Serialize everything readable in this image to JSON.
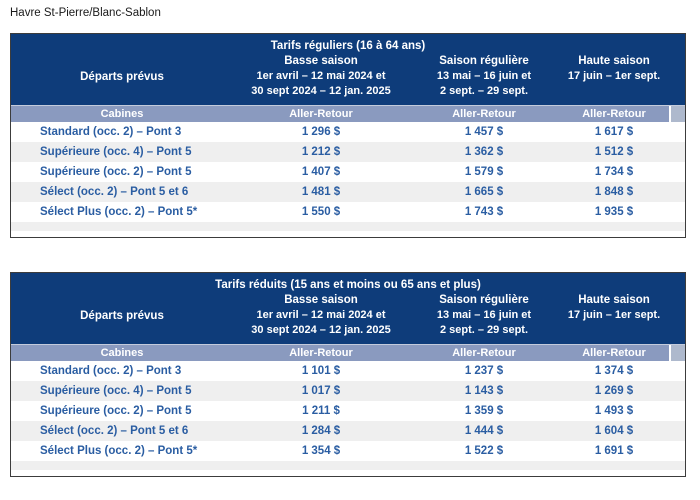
{
  "page_title": "Havre St-Pierre/Blanc-Sablon",
  "colors": {
    "header_navy": "#0e3c7a",
    "subheader_band": "#8a9abf",
    "subheader_endcap": "#aeb9cd",
    "row_alt_gray": "#efefef",
    "data_text_blue": "#2a5da2",
    "header_text": "#ffffff",
    "table_border": "#3c3c3c"
  },
  "tables": [
    {
      "title": "Tarifs réguliers (16 à 64 ans)",
      "departures_label": "Départs prévus",
      "cabins_label": "Cabines",
      "seasons": [
        {
          "name": "Basse saison",
          "dates": [
            "1er avril – 12 mai 2024 et",
            "30 sept 2024 – 12 jan. 2025"
          ],
          "fare_type": "Aller-Retour"
        },
        {
          "name": "Saison régulière",
          "dates": [
            "13 mai – 16 juin et",
            "2 sept. – 29 sept."
          ],
          "fare_type": "Aller-Retour"
        },
        {
          "name": "Haute saison",
          "dates": [
            "17 juin – 1er sept."
          ],
          "fare_type": "Aller-Retour"
        }
      ],
      "rows": [
        {
          "cabin": "Standard (occ. 2) – Pont 3",
          "prices": [
            "1 296 $",
            "1 457 $",
            "1 617 $"
          ]
        },
        {
          "cabin": "Supérieure (occ. 4) – Pont 5",
          "prices": [
            "1 212 $",
            "1 362 $",
            "1 512 $"
          ]
        },
        {
          "cabin": "Supérieure (occ. 2) – Pont 5",
          "prices": [
            "1 407 $",
            "1 579 $",
            "1 734 $"
          ]
        },
        {
          "cabin": "Sélect (occ. 2) – Pont 5 et 6",
          "prices": [
            "1 481 $",
            "1 665 $",
            "1 848 $"
          ]
        },
        {
          "cabin": "Sélect Plus (occ. 2) – Pont 5*",
          "prices": [
            "1 550 $",
            "1 743 $",
            "1 935 $"
          ]
        }
      ]
    },
    {
      "title": "Tarifs réduits (15 ans et moins ou 65 ans et plus)",
      "departures_label": "Départs prévus",
      "cabins_label": "Cabines",
      "seasons": [
        {
          "name": "Basse saison",
          "dates": [
            "1er avril – 12 mai 2024 et",
            "30 sept 2024 – 12 jan. 2025"
          ],
          "fare_type": "Aller-Retour"
        },
        {
          "name": "Saison régulière",
          "dates": [
            "13 mai – 16 juin et",
            "2 sept. – 29 sept."
          ],
          "fare_type": "Aller-Retour"
        },
        {
          "name": "Haute saison",
          "dates": [
            "17 juin – 1er sept."
          ],
          "fare_type": "Aller-Retour"
        }
      ],
      "rows": [
        {
          "cabin": "Standard (occ. 2) – Pont 3",
          "prices": [
            "1 101 $",
            "1 237 $",
            "1 374 $"
          ]
        },
        {
          "cabin": "Supérieure (occ. 4) – Pont 5",
          "prices": [
            "1 017 $",
            "1 143 $",
            "1 269 $"
          ]
        },
        {
          "cabin": "Supérieure (occ. 2) – Pont 5",
          "prices": [
            "1 211 $",
            "1 359 $",
            "1 493 $"
          ]
        },
        {
          "cabin": "Sélect (occ. 2) – Pont 5 et 6",
          "prices": [
            "1 284 $",
            "1 444 $",
            "1 604 $"
          ]
        },
        {
          "cabin": "Sélect Plus (occ. 2) – Pont 5*",
          "prices": [
            "1 354 $",
            "1 522 $",
            "1 691 $"
          ]
        }
      ]
    }
  ]
}
